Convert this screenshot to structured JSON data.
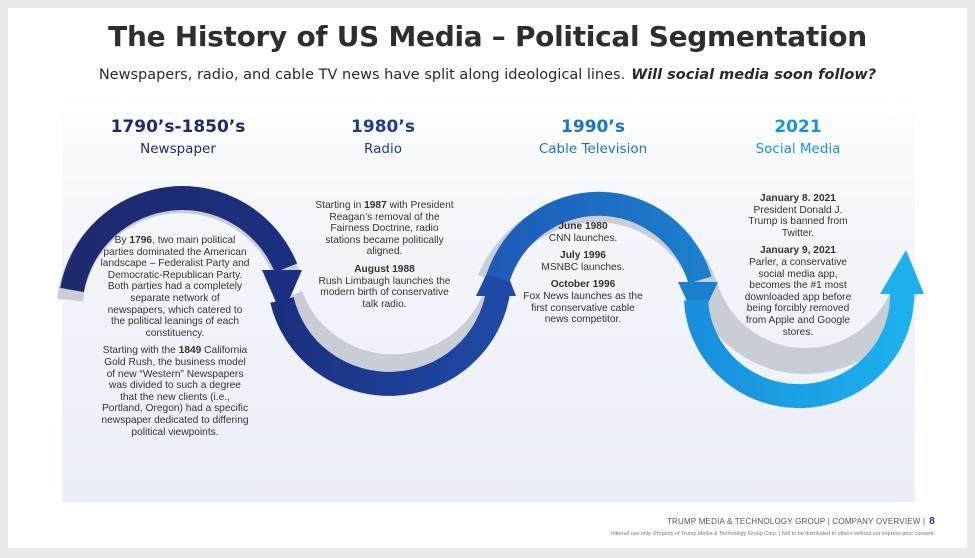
{
  "header": {
    "title": "The History of US Media – Political Segmentation",
    "subtitle": "Newspapers, radio, and cable TV news have split along ideological lines.",
    "subtitle_emphasis": "Will social media soon follow?"
  },
  "eras": [
    {
      "year": "1790’s-1850’s",
      "name": "Newspaper",
      "color": "#1e2a6e"
    },
    {
      "year": "1980’s",
      "name": "Radio",
      "color": "#1d3d94"
    },
    {
      "year": "1990’s",
      "name": "Cable Television",
      "color": "#1877c4"
    },
    {
      "year": "2021",
      "name": "Social Media",
      "color": "#1696d8"
    }
  ],
  "newspaper_text": {
    "p1_bold": "1796",
    "p1_pre": "By ",
    "p1_post": ", two main political parties dominated the American landscape – Federalist Party and Democratic-Republican Party. Both parties had a completely separate network of newspapers, which catered to the political leanings of each constituency.",
    "p2_pre": "Starting with the ",
    "p2_bold": "1849",
    "p2_post": " California Gold Rush, the business model of new “Western” Newspapers was divided to such a degree that the new clients (i.e., Portland, Oregon) had a specific newspaper dedicated to differing political viewpoints."
  },
  "radio_text": {
    "p1_pre": "Starting in ",
    "p1_bold": "1987",
    "p1_post": " with President Reagan’s removal of the Fairness Doctrine, radio stations became politically aligned.",
    "p2_bold": "August 1988",
    "p2_post": "Rush Limbaugh launches the modern birth of conservative talk radio."
  },
  "cable_text": {
    "e1_bold": "June 1980",
    "e1_post": "CNN launches.",
    "e2_bold": "July 1996",
    "e2_post": "MSNBC launches.",
    "e3_bold": "October 1996",
    "e3_post": "Fox News launches as the first conservative cable news competitor."
  },
  "social_text": {
    "e1_bold": "January 8. 2021",
    "e1_post": "President Donald J. Trump is banned from Twitter.",
    "e2_bold": "January 9, 2021",
    "e2_post": "Parler, a conservative social media app, becomes the #1 most downloaded app before being forcibly removed from Apple and Google stores."
  },
  "footer": {
    "company": "TRUMP MEDIA & TECHNOLOGY GROUP | COMPANY OVERVIEW |",
    "page": "8",
    "fineprint": "Internal use only. Property of Trump Media & Technology Group Corp. | Not to be distributed to others without our express prior consent."
  },
  "colors": {
    "navy": "#1e2a6e",
    "royal": "#1d3d94",
    "cable": "#1877c4",
    "sky": "#18a4e8"
  }
}
